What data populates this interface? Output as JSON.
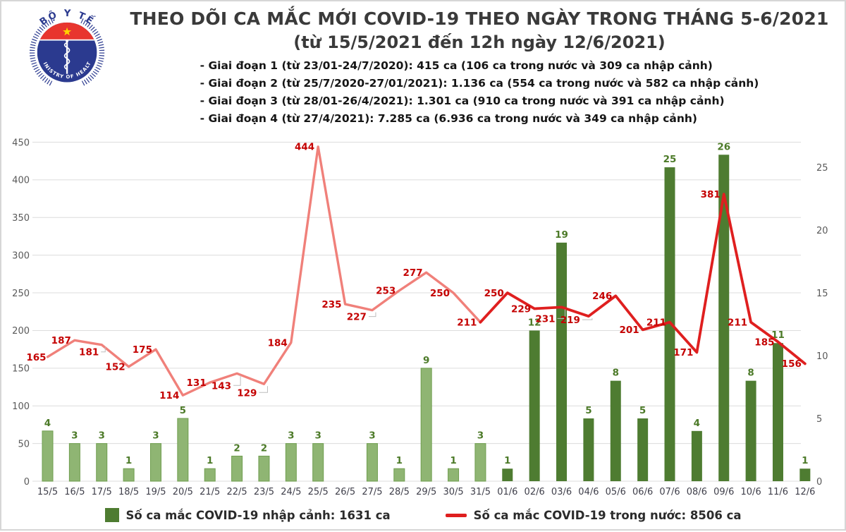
{
  "page": {
    "title_line1": "THEO DÕI CA MẮC MỚI COVID-19 THEO NGÀY TRONG THÁNG 5-6/2021",
    "title_line2": "(từ 15/5/2021 đến 12h ngày 12/6/2021)",
    "phases": [
      "- Giai đoạn 1 (từ 23/01-24/7/2020): 415 ca (106 ca trong nước và 309 ca nhập cảnh)",
      "- Giai đoạn 2 (từ 25/7/2020-27/01/2021): 1.136 ca (554 ca trong nước và 582 ca nhập cảnh)",
      "- Giai đoạn 3 (từ 28/01-26/4/2021): 1.301 ca (910 ca trong nước và 391 ca nhập cảnh)",
      "- Giai đoạn 4 (từ 27/4/2021): 7.285 ca (6.936 ca trong nước và 349 ca nhập cảnh)"
    ],
    "logo": {
      "top_text": "BỘ Y TẾ",
      "bottom_text": "MINISTRY OF HEALTH"
    }
  },
  "chart_data": {
    "type": "bar+line",
    "title": "THEO DÕI CA MẮC MỚI COVID-19 THEO NGÀY TRONG THÁNG 5-6/2021 (từ 15/5/2021 đến 12h ngày 12/6/2021)",
    "categories": [
      "15/5",
      "16/5",
      "17/5",
      "18/5",
      "19/5",
      "20/5",
      "21/5",
      "22/5",
      "23/5",
      "24/5",
      "25/5",
      "26/5",
      "27/5",
      "28/5",
      "29/5",
      "30/5",
      "31/5",
      "01/6",
      "02/6",
      "03/6",
      "04/6",
      "05/6",
      "06/6",
      "07/6",
      "08/6",
      "09/6",
      "10/6",
      "11/6",
      "12/6"
    ],
    "series": [
      {
        "name": "Số ca mắc COVID-19 nhập cảnh",
        "type": "bar",
        "axis": "right",
        "values": [
          4,
          3,
          3,
          1,
          3,
          5,
          1,
          2,
          2,
          3,
          3,
          0,
          3,
          1,
          9,
          1,
          3,
          1,
          12,
          19,
          5,
          8,
          5,
          25,
          4,
          26,
          8,
          11,
          1
        ]
      },
      {
        "name": "Số ca mắc COVID-19 trong nước",
        "type": "line",
        "axis": "left",
        "values": [
          165,
          187,
          181,
          152,
          175,
          114,
          131,
          143,
          129,
          184,
          444,
          235,
          227,
          253,
          277,
          250,
          211,
          250,
          229,
          231,
          219,
          246,
          201,
          211,
          171,
          381,
          211,
          185,
          156
        ]
      }
    ],
    "left_axis": {
      "min": 0,
      "max": 450,
      "step": 50
    },
    "right_axis": {
      "min": 0,
      "max": 25,
      "step": 5,
      "ticks": [
        0,
        5,
        10,
        15,
        20,
        25
      ]
    },
    "highlight_from_index": 17,
    "grid": "horizontal",
    "legend_position": "bottom",
    "legend": [
      {
        "label": "Số ca mắc COVID-19 nhập cảnh: 1631 ca"
      },
      {
        "label": "Số ca mắc COVID-19 trong nước: 8506 ca"
      }
    ],
    "colors": {
      "bar_may_fill": "#8FB573",
      "bar_may_stroke": "#6F9E4F",
      "bar_june": "#4E7C31",
      "line_may": "#F0807A",
      "line_june": "#DF1F1F",
      "value_label_red": "#C40000",
      "value_label_green": "#4C7A28",
      "grid": "#DCDCDC",
      "axis_text": "#595959",
      "xaxis_text": "#3F3F4A"
    }
  }
}
